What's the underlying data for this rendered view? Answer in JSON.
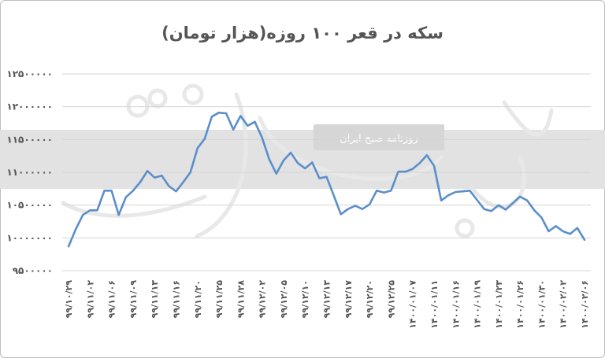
{
  "chart_data": {
    "type": "line",
    "title": "سکه در قعر ۱۰۰ روزه(هزار تومان)",
    "xlabel": "",
    "ylabel": "",
    "ylim": [
      9500000,
      12500000
    ],
    "y_ticks": [
      9500000,
      10000000,
      10500000,
      11000000,
      11500000,
      12000000,
      12500000
    ],
    "y_tick_labels": [
      "۹۵۰۰۰۰۰",
      "۱۰۰۰۰۰۰۰",
      "۱۰۵۰۰۰۰۰",
      "۱۱۰۰۰۰۰۰",
      "۱۱۵۰۰۰۰۰",
      "۱۲۰۰۰۰۰۰",
      "۱۲۵۰۰۰۰۰"
    ],
    "x_tick_labels": [
      "۹۹/۱۰/۲۹",
      "۹۹/۱۱/۰۲",
      "۹۹/۱۱/۰۶",
      "۹۹/۱۱/۰۹",
      "۹۹/۱۱/۱۳",
      "۹۹/۱۱/۱۶",
      "۹۹/۱۱/۲۰",
      "۹۹/۱۱/۲۵",
      "۹۹/۱۱/۲۸",
      "۹۹/۱۲/۰۲",
      "۹۹/۱۲/۰۵",
      "۹۹/۱۲/۱۰",
      "۹۹/۱۲/۱۳",
      "۹۹/۱۲/۱۷",
      "۹۹/۱۲/۲۰",
      "۹۹/۱۲/۲۵",
      "۱۴۰۰/۰۱/۰۷",
      "۱۴۰۰/۰۱/۱۱",
      "۱۴۰۰/۰۱/۱۶",
      "۱۴۰۰/۰۱/۱۹",
      "۱۴۰۰/۰۱/۲۳",
      "۱۴۰۰/۰۱/۲۶",
      "۱۴۰۰/۰۱/۳۰",
      "۱۴۰۰/۰۲/۰۲",
      "۱۴۰۰/۰۲/۰۶"
    ],
    "grid": true,
    "legend": "none",
    "series": [
      {
        "color": "#5b8fca",
        "values": [
          9870000,
          10130000,
          10350000,
          10420000,
          10420000,
          10720000,
          10720000,
          10350000,
          10620000,
          10720000,
          10850000,
          11020000,
          10920000,
          10950000,
          10790000,
          10710000,
          10850000,
          11000000,
          11370000,
          11510000,
          11850000,
          11910000,
          11900000,
          11650000,
          11860000,
          11710000,
          11770000,
          11530000,
          11200000,
          10980000,
          11180000,
          11300000,
          11140000,
          11060000,
          11150000,
          10910000,
          10930000,
          10650000,
          10360000,
          10440000,
          10490000,
          10440000,
          10510000,
          10720000,
          10690000,
          10720000,
          11010000,
          11010000,
          11050000,
          11140000,
          11260000,
          11100000,
          10570000,
          10650000,
          10700000,
          10710000,
          10720000,
          10580000,
          10440000,
          10410000,
          10500000,
          10430000,
          10530000,
          10630000,
          10570000,
          10420000,
          10310000,
          10100000,
          10180000,
          10100000,
          10060000,
          10150000,
          9970000
        ]
      }
    ]
  },
  "watermark": {
    "text": "روزنامه صبح ایران"
  }
}
